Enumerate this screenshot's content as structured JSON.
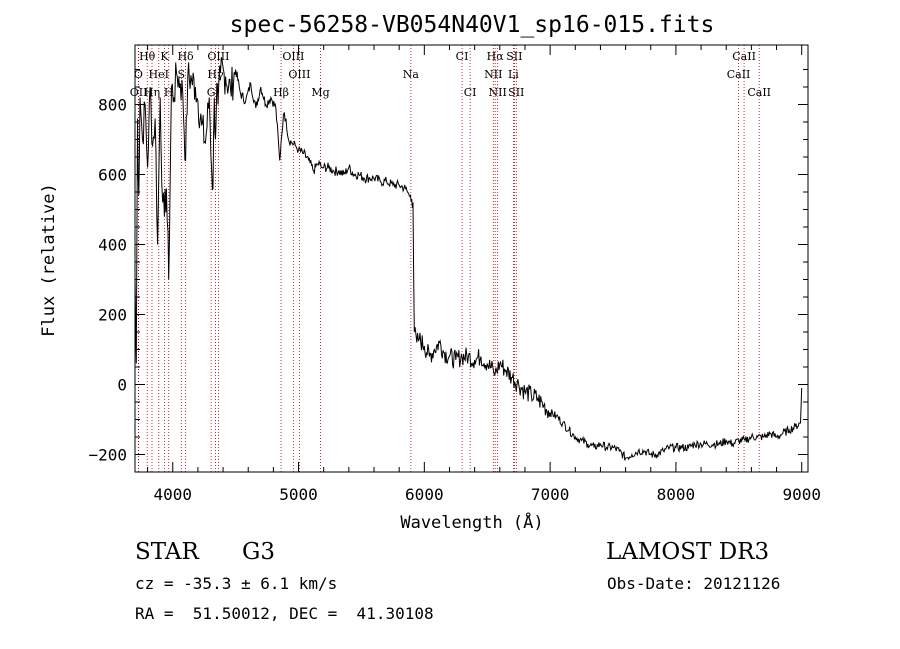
{
  "chart_data": {
    "type": "line",
    "title": "spec-56258-VB054N40V1_sp16-015.fits",
    "xlabel": "Wavelength (Å)",
    "ylabel": "Flux (relative)",
    "xlim": [
      3700,
      9050
    ],
    "ylim": [
      -250,
      970
    ],
    "xticks": [
      4000,
      5000,
      6000,
      7000,
      8000,
      9000
    ],
    "yticks": [
      -200,
      0,
      200,
      400,
      600,
      800
    ],
    "series": [
      {
        "name": "flux",
        "x": [
          3700,
          3710,
          3720,
          3730,
          3740,
          3760,
          3780,
          3800,
          3820,
          3840,
          3860,
          3880,
          3900,
          3920,
          3934,
          3950,
          3968,
          3990,
          4010,
          4030,
          4060,
          4080,
          4102,
          4120,
          4150,
          4180,
          4200,
          4230,
          4260,
          4290,
          4310,
          4320,
          4330,
          4340,
          4350,
          4360,
          4380,
          4420,
          4460,
          4500,
          4540,
          4580,
          4620,
          4660,
          4700,
          4740,
          4780,
          4820,
          4850,
          4861,
          4880,
          4900,
          4920,
          4950,
          4980,
          5000,
          5040,
          5080,
          5120,
          5150,
          5170,
          5180,
          5200,
          5240,
          5280,
          5320,
          5360,
          5400,
          5440,
          5480,
          5520,
          5560,
          5600,
          5650,
          5700,
          5750,
          5800,
          5850,
          5880,
          5890,
          5900,
          5910,
          5920,
          5940,
          5960,
          6000,
          6040,
          6080,
          6120,
          6160,
          6200,
          6250,
          6300,
          6350,
          6400,
          6450,
          6500,
          6550,
          6563,
          6600,
          6650,
          6700,
          6750,
          6800,
          6850,
          6900,
          6950,
          7000,
          7050,
          7100,
          7150,
          7200,
          7250,
          7300,
          7350,
          7400,
          7450,
          7500,
          7550,
          7600,
          7650,
          7700,
          7750,
          7800,
          7850,
          7900,
          7950,
          8000,
          8050,
          8100,
          8150,
          8200,
          8250,
          8300,
          8350,
          8400,
          8450,
          8500,
          8550,
          8600,
          8650,
          8700,
          8750,
          8800,
          8850,
          8900,
          8950,
          8990,
          9000
        ],
        "y": [
          310,
          60,
          760,
          540,
          820,
          700,
          800,
          620,
          850,
          680,
          760,
          400,
          820,
          520,
          480,
          560,
          300,
          850,
          820,
          890,
          860,
          830,
          640,
          880,
          870,
          850,
          810,
          740,
          690,
          820,
          610,
          560,
          820,
          700,
          860,
          800,
          890,
          880,
          840,
          900,
          830,
          810,
          860,
          790,
          850,
          800,
          820,
          790,
          640,
          690,
          770,
          760,
          700,
          690,
          680,
          670,
          660,
          640,
          610,
          630,
          630,
          620,
          620,
          620,
          610,
          610,
          600,
          620,
          600,
          600,
          590,
          590,
          590,
          580,
          580,
          570,
          570,
          560,
          540,
          540,
          530,
          520,
          150,
          120,
          130,
          110,
          80,
          100,
          120,
          90,
          80,
          70,
          80,
          80,
          70,
          80,
          60,
          40,
          30,
          60,
          40,
          20,
          0,
          -20,
          -30,
          -40,
          -60,
          -80,
          -90,
          -110,
          -130,
          -150,
          -160,
          -170,
          -180,
          -170,
          -180,
          -180,
          -190,
          -210,
          -200,
          -190,
          -190,
          -200,
          -200,
          -190,
          -180,
          -180,
          -180,
          -180,
          -170,
          -170,
          -170,
          -170,
          -170,
          -160,
          -170,
          -160,
          -160,
          -150,
          -150,
          -150,
          -140,
          -150,
          -140,
          -130,
          -120,
          -110,
          -10
        ]
      }
    ],
    "line_markers": [
      {
        "label": "Hθ",
        "wavelength": 3797,
        "row": 0
      },
      {
        "label": "K",
        "wavelength": 3934,
        "row": 0
      },
      {
        "label": "Hδ",
        "wavelength": 4102,
        "row": 0
      },
      {
        "label": "OIII",
        "wavelength": 4363,
        "row": 0
      },
      {
        "label": "OIII",
        "wavelength": 4959,
        "row": 0
      },
      {
        "label": "CI",
        "wavelength": 6300,
        "row": 0
      },
      {
        "label": "Hα",
        "wavelength": 6563,
        "row": 0
      },
      {
        "label": "SII",
        "wavelength": 6716,
        "row": 0
      },
      {
        "label": "CaII",
        "wavelength": 8542,
        "row": 0
      },
      {
        "label": "O",
        "wavelength": 3727,
        "row": 1
      },
      {
        "label": "HeI",
        "wavelength": 3889,
        "row": 1
      },
      {
        "label": "S",
        "wavelength": 4068,
        "row": 1
      },
      {
        "label": "Hγ",
        "wavelength": 4340,
        "row": 1
      },
      {
        "label": "OIII",
        "wavelength": 5007,
        "row": 1
      },
      {
        "label": "Na",
        "wavelength": 5893,
        "row": 1
      },
      {
        "label": "NII",
        "wavelength": 6548,
        "row": 1
      },
      {
        "label": "Li",
        "wavelength": 6708,
        "row": 1
      },
      {
        "label": "CaII",
        "wavelength": 8498,
        "row": 1
      },
      {
        "label": "OII",
        "wavelength": 3729,
        "row": 2
      },
      {
        "label": "Hη",
        "wavelength": 3835,
        "row": 2
      },
      {
        "label": "H",
        "wavelength": 3968,
        "row": 2
      },
      {
        "label": "G",
        "wavelength": 4305,
        "row": 2
      },
      {
        "label": "Hβ",
        "wavelength": 4861,
        "row": 2
      },
      {
        "label": "Mg",
        "wavelength": 5175,
        "row": 2
      },
      {
        "label": "CI",
        "wavelength": 6364,
        "row": 2
      },
      {
        "label": "NII",
        "wavelength": 6583,
        "row": 2
      },
      {
        "label": "SII",
        "wavelength": 6731,
        "row": 2
      },
      {
        "label": "CaII",
        "wavelength": 8662,
        "row": 2
      }
    ]
  },
  "object_class": "STAR",
  "subclass": "G3",
  "survey": "LAMOST DR3",
  "redshift_text": "cz = -35.3 ± 6.1 km/s",
  "coords_text": "RA =  51.50012, DEC =  41.30108",
  "obs_date_text": "Obs-Date: 20121126",
  "colors": {
    "line": "#000000",
    "marker": "#b00000",
    "background": "#ffffff"
  }
}
